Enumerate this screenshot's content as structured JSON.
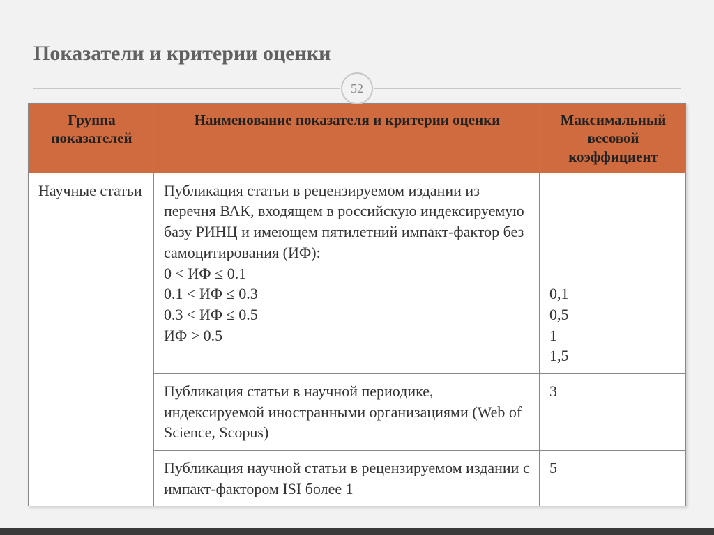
{
  "slide": {
    "title": "Показатели и критерии оценки",
    "page_number": "52"
  },
  "table": {
    "header_bg": "#d06b3f",
    "border_color": "#888888",
    "columns": {
      "group": "Группа показателей",
      "name": "Наименование показателя и критерии оценки",
      "coef": "Максимальный весовой коэффициент"
    },
    "group_label": "Научные статьи",
    "rows": [
      {
        "name": "Публикация статьи в рецензируемом издании из перечня ВАК, входящем в российскую индексируемую базу РИНЦ и имеющем пятилетний импакт-фактор без самоцитирования (ИФ):\n0   <  ИФ  ≤  0.1\n0.1 <  ИФ  ≤   0.3\n0.3 <  ИФ  ≤   0.5\n          ИФ  >  0.5",
        "coef": "\n\n\n\n\n0,1\n0,5\n1\n1,5"
      },
      {
        "name": "Публикация статьи в научной периодике, индексируемой иностранными организациями (Web of Science, Scopus)",
        "coef": "3"
      },
      {
        "name": "Публикация научной статьи в рецензируемом издании с импакт-фактором ISI более 1",
        "coef": "5"
      }
    ]
  }
}
